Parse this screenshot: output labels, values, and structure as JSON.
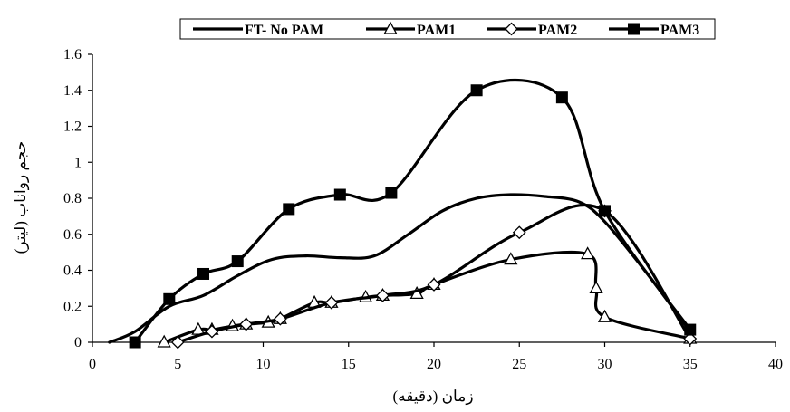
{
  "chart_data": {
    "type": "line",
    "title": "",
    "xlabel": "زمان (دقیقه)",
    "ylabel": "حجم رواناب (لیتر)",
    "xlim": [
      0,
      40
    ],
    "ylim": [
      0,
      1.6
    ],
    "xticks": [
      "0",
      "5",
      "10",
      "15",
      "20",
      "25",
      "30",
      "35",
      "40"
    ],
    "yticks": [
      "0",
      "0.2",
      "0.4",
      "0.6",
      "0.8",
      "1",
      "1.2",
      "1.4",
      "1.6"
    ],
    "grid": false,
    "legend_position": "top",
    "series": [
      {
        "name": "FT- No PAM",
        "marker": "none",
        "x": [
          1,
          2.5,
          4.5,
          6.5,
          8.5,
          10.5,
          12.5,
          14.5,
          16.5,
          18.5,
          20.5,
          22.5,
          24.5,
          26.5,
          28.5,
          30,
          32.5,
          35
        ],
        "y": [
          0,
          0.06,
          0.2,
          0.26,
          0.37,
          0.46,
          0.48,
          0.47,
          0.48,
          0.6,
          0.73,
          0.8,
          0.82,
          0.81,
          0.78,
          0.67,
          0.38,
          0.06
        ]
      },
      {
        "name": "PAM1",
        "marker": "triangle",
        "x": [
          4.2,
          6.2,
          7,
          8.2,
          9,
          10.3,
          11,
          13,
          14,
          16,
          17,
          19,
          20,
          24.5,
          29,
          29.5,
          30,
          35
        ],
        "y": [
          0,
          0.07,
          0.07,
          0.09,
          0.1,
          0.11,
          0.13,
          0.22,
          0.22,
          0.25,
          0.26,
          0.27,
          0.32,
          0.46,
          0.49,
          0.3,
          0.14,
          0.02
        ]
      },
      {
        "name": "PAM2",
        "marker": "diamond",
        "x": [
          5,
          7,
          9,
          11,
          14,
          17,
          20,
          25,
          30,
          35
        ],
        "y": [
          0,
          0.06,
          0.1,
          0.13,
          0.22,
          0.26,
          0.32,
          0.61,
          0.73,
          0.02
        ]
      },
      {
        "name": "PAM3",
        "marker": "square",
        "x": [
          2.5,
          4.5,
          6.5,
          8.5,
          11.5,
          14.5,
          17.5,
          22.5,
          27.5,
          30,
          35
        ],
        "y": [
          0,
          0.24,
          0.38,
          0.45,
          0.74,
          0.82,
          0.83,
          1.4,
          1.36,
          0.73,
          0.07
        ]
      }
    ]
  }
}
